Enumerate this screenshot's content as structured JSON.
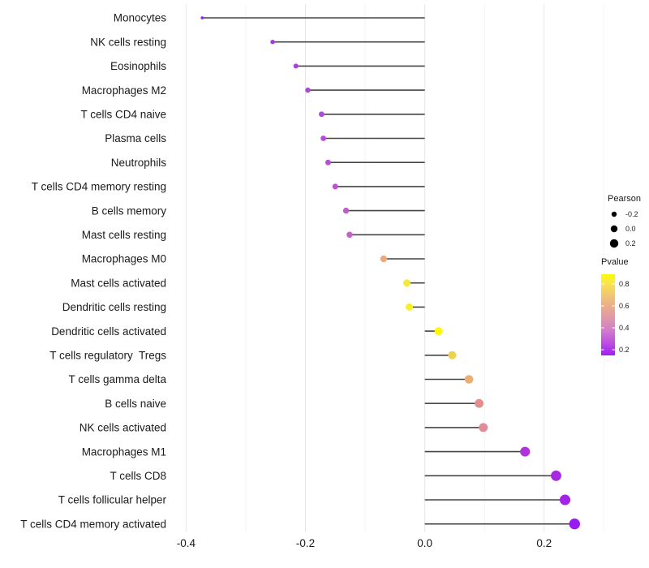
{
  "chart_data": {
    "type": "scatter",
    "variant": "horizontal-lollipop",
    "title": "",
    "xlabel": "",
    "ylabel": "",
    "xlim": [
      -0.425,
      0.305
    ],
    "x_major_ticks": [
      -0.4,
      -0.2,
      0.0,
      0.2
    ],
    "x_tick_labels": [
      "-0.4",
      "-0.2",
      "0.0",
      "0.2"
    ],
    "x_minor_ticks": [
      -0.3,
      -0.1,
      0.1,
      0.3
    ],
    "grid": "vertical-only",
    "baseline_x": 0,
    "legend_position": "right",
    "categories": [
      "Monocytes",
      "NK cells resting",
      "Eosinophils",
      "Macrophages M2",
      "T cells CD4 naive",
      "Plasma cells",
      "Neutrophils",
      "T cells CD4 memory resting",
      "B cells memory",
      "Mast cells resting",
      "Macrophages M0",
      "Mast cells activated",
      "Dendritic cells resting",
      "Dendritic cells activated",
      "T cells regulatory  Tregs",
      "T cells gamma delta",
      "B cells naive",
      "NK cells activated",
      "Macrophages M1",
      "T cells CD8",
      "T cells follicular helper",
      "T cells CD4 memory activated"
    ],
    "series": [
      {
        "name": "Pearson",
        "values": [
          -0.373,
          -0.255,
          -0.216,
          -0.196,
          -0.173,
          -0.17,
          -0.162,
          -0.15,
          -0.132,
          -0.126,
          -0.069,
          -0.03,
          -0.026,
          0.023,
          0.046,
          0.074,
          0.091,
          0.098,
          0.168,
          0.22,
          0.235,
          0.251
        ],
        "point_colors": [
          "#9229E5",
          "#A839E2",
          "#AC3EDF",
          "#B044DC",
          "#B348DA",
          "#B54AD8",
          "#B84ED5",
          "#BB53D1",
          "#C05CCB",
          "#C463C7",
          "#EBAA7D",
          "#F3E93C",
          "#F7EF29",
          "#FDF70A",
          "#EFD14E",
          "#EDAE71",
          "#E28E90",
          "#E18D98",
          "#AF33DB",
          "#A72AE1",
          "#A124E7",
          "#991BEE"
        ]
      }
    ],
    "size_scale": {
      "domain": [
        -0.375,
        0.255
      ],
      "radius_px": [
        1.8,
        6.7
      ]
    },
    "legends": {
      "size": {
        "title": "Pearson",
        "dot_color": "#000000",
        "entries": [
          {
            "label": "-0.2",
            "radius_px": 3.2
          },
          {
            "label": "0.0",
            "radius_px": 4.2
          },
          {
            "label": "0.2",
            "radius_px": 5.2
          }
        ]
      },
      "colorbar": {
        "title": "Pvalue",
        "tick_labels": [
          "0.8",
          "0.6",
          "0.4",
          "0.2"
        ],
        "tick_fractions_from_top": [
          0.12,
          0.39,
          0.66,
          0.93
        ],
        "gradient_bottom_to_top": [
          {
            "offset": 0.0,
            "color": "#A21EF4"
          },
          {
            "offset": 0.15,
            "color": "#BC4CE2"
          },
          {
            "offset": 0.32,
            "color": "#D37FC9"
          },
          {
            "offset": 0.48,
            "color": "#E39BA4"
          },
          {
            "offset": 0.62,
            "color": "#EBAF88"
          },
          {
            "offset": 0.78,
            "color": "#F3CE6B"
          },
          {
            "offset": 0.9,
            "color": "#F9E74A"
          },
          {
            "offset": 1.0,
            "color": "#FEF902"
          }
        ]
      }
    },
    "colors": {
      "background": "#FFFFFF",
      "stem": "#454545",
      "grid_major": "#E7E7E7",
      "grid_minor": "#F3F3F3",
      "axis_text": "#454545",
      "category_text": "#1A1A1A",
      "legend_text": "#333333"
    }
  }
}
